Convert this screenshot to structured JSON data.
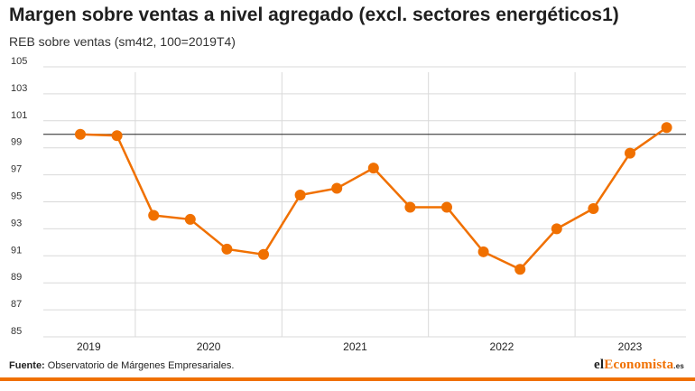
{
  "header": {
    "title": "Margen sobre ventas a nivel agregado (excl. sectores energéticos1)",
    "subtitle": "REB sobre ventas (sm4t2, 100=2019T4)"
  },
  "footer": {
    "source_label": "Fuente:",
    "source_text": "Observatorio de Márgenes Empresariales.",
    "brand_prefix": "el",
    "brand_accent": "Economista",
    "brand_suffix": ".es"
  },
  "colors": {
    "series": "#f07000",
    "grid": "#d9d9d9",
    "reference": "#222222",
    "brand": "#f07000"
  },
  "chart_data": {
    "type": "line",
    "title": "Margen sobre ventas a nivel agregado (excl. sectores energéticos1)",
    "subtitle": "REB sobre ventas (sm4t2, 100=2019T4)",
    "ylim": [
      85,
      105
    ],
    "yticks": [
      "105",
      "103",
      "101",
      "99",
      "97",
      "95",
      "93",
      "91",
      "89",
      "87",
      "85"
    ],
    "year_labels": [
      "2019",
      "2020",
      "2021",
      "2022",
      "2023"
    ],
    "reference_line": 100,
    "x": [
      "2019T3",
      "2019T4",
      "2020T1",
      "2020T2",
      "2020T3",
      "2020T4",
      "2021T1",
      "2021T2",
      "2021T3",
      "2021T4",
      "2022T1",
      "2022T2",
      "2022T3",
      "2022T4",
      "2023T1",
      "2023T2",
      "2023T3"
    ],
    "series": [
      {
        "values": [
          100.0,
          99.9,
          94.0,
          93.7,
          91.5,
          91.1,
          95.5,
          96.0,
          97.5,
          94.6,
          94.6,
          91.3,
          90.0,
          93.0,
          94.5,
          98.6,
          100.5
        ]
      }
    ],
    "grid": true
  }
}
